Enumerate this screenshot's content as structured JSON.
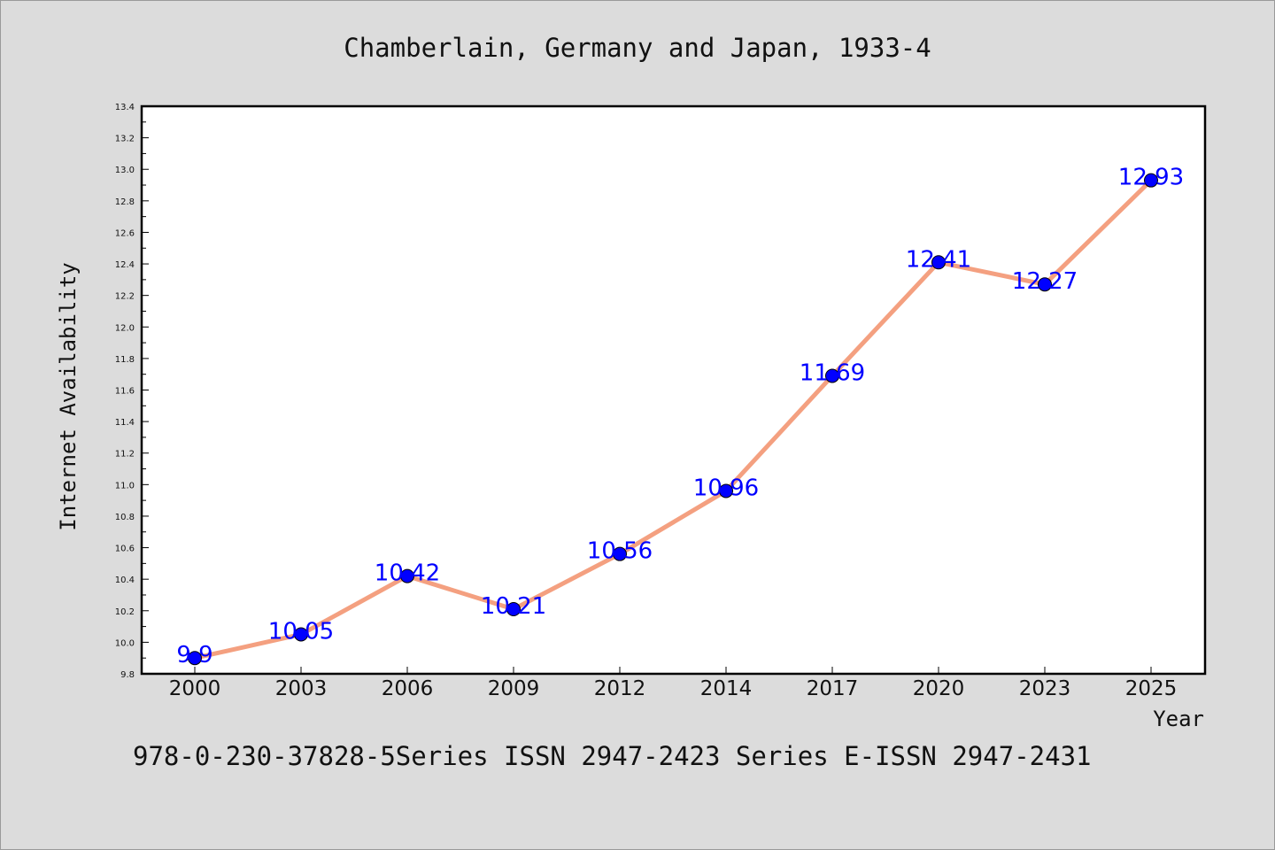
{
  "chart_data": {
    "type": "line",
    "title": "Chamberlain, Germany and Japan, 1933-4",
    "xlabel": "Year",
    "ylabel": "Internet Availability",
    "categories": [
      "2000",
      "2003",
      "2006",
      "2009",
      "2012",
      "2014",
      "2017",
      "2020",
      "2023",
      "2025"
    ],
    "values": [
      9.9,
      10.05,
      10.42,
      10.21,
      10.56,
      10.96,
      11.69,
      12.41,
      12.27,
      12.93
    ],
    "data_labels": [
      "9.9",
      "10.05",
      "10.42",
      "10.21",
      "10.56",
      "10.96",
      "11.69",
      "12.41",
      "12.27",
      "12.93"
    ],
    "ylim": [
      9.8,
      13.4
    ],
    "yticks": [
      "9.8",
      "10.0",
      "10.2",
      "10.4",
      "10.6",
      "10.8",
      "11.0",
      "11.2",
      "11.4",
      "11.6",
      "11.8",
      "12.0",
      "12.2",
      "12.4",
      "12.6",
      "12.8",
      "13.0",
      "13.2",
      "13.4"
    ],
    "grid": false,
    "legend": "none",
    "line_color": "#f4a080",
    "marker_color": "#0000ff",
    "label_color": "#0000ff"
  },
  "footer_text": "978-0-230-37828-5Series ISSN 2947-2423 Series E-ISSN 2947-2431"
}
